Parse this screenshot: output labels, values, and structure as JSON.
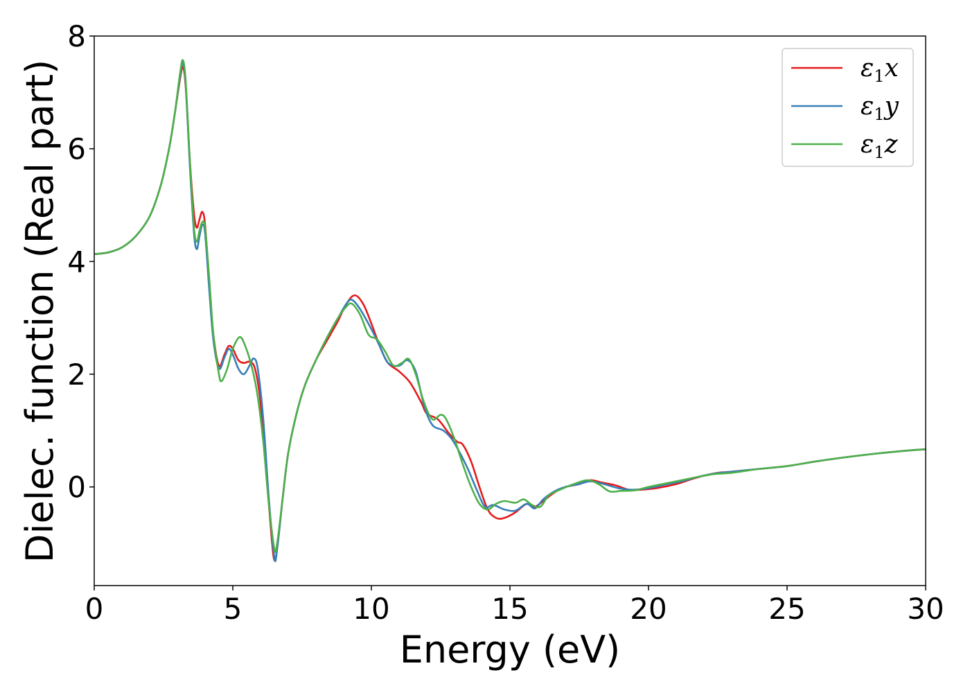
{
  "chart_data": {
    "type": "line",
    "title": "",
    "xlabel": "Energy (eV)",
    "ylabel": "Dielec. function (Real part)",
    "xlim": [
      0,
      30
    ],
    "ylim": [
      -1.75,
      8
    ],
    "xticks": [
      0,
      5,
      10,
      15,
      20,
      25,
      30
    ],
    "yticks": [
      0,
      2,
      4,
      6,
      8
    ],
    "grid": false,
    "legend_position": "top-right",
    "series": [
      {
        "name": "ε1x",
        "legend_main": "ε",
        "legend_sub": "1",
        "legend_tail": "x",
        "color": "#e41a1c",
        "points": [
          [
            0,
            4.13
          ],
          [
            0.5,
            4.16
          ],
          [
            1.0,
            4.25
          ],
          [
            1.5,
            4.45
          ],
          [
            2.0,
            4.8
          ],
          [
            2.4,
            5.35
          ],
          [
            2.7,
            6.0
          ],
          [
            2.9,
            6.6
          ],
          [
            3.1,
            7.25
          ],
          [
            3.2,
            7.45
          ],
          [
            3.3,
            7.1
          ],
          [
            3.45,
            5.8
          ],
          [
            3.6,
            4.85
          ],
          [
            3.7,
            4.6
          ],
          [
            3.8,
            4.75
          ],
          [
            3.9,
            4.88
          ],
          [
            4.0,
            4.65
          ],
          [
            4.15,
            3.6
          ],
          [
            4.3,
            2.7
          ],
          [
            4.5,
            2.15
          ],
          [
            4.7,
            2.35
          ],
          [
            4.85,
            2.5
          ],
          [
            5.0,
            2.45
          ],
          [
            5.2,
            2.25
          ],
          [
            5.4,
            2.2
          ],
          [
            5.6,
            2.22
          ],
          [
            5.8,
            2.1
          ],
          [
            6.0,
            1.5
          ],
          [
            6.2,
            0.3
          ],
          [
            6.4,
            -0.9
          ],
          [
            6.5,
            -1.3
          ],
          [
            6.6,
            -1.1
          ],
          [
            6.8,
            -0.2
          ],
          [
            7.0,
            0.6
          ],
          [
            7.3,
            1.3
          ],
          [
            7.6,
            1.8
          ],
          [
            8.0,
            2.25
          ],
          [
            8.4,
            2.6
          ],
          [
            8.8,
            2.95
          ],
          [
            9.1,
            3.25
          ],
          [
            9.4,
            3.4
          ],
          [
            9.7,
            3.25
          ],
          [
            10.0,
            2.9
          ],
          [
            10.3,
            2.5
          ],
          [
            10.6,
            2.2
          ],
          [
            11.0,
            2.05
          ],
          [
            11.4,
            1.85
          ],
          [
            11.8,
            1.5
          ],
          [
            12.0,
            1.3
          ],
          [
            12.4,
            1.2
          ],
          [
            12.8,
            0.95
          ],
          [
            13.1,
            0.8
          ],
          [
            13.3,
            0.75
          ],
          [
            13.6,
            0.45
          ],
          [
            13.9,
            0.0
          ],
          [
            14.2,
            -0.4
          ],
          [
            14.5,
            -0.55
          ],
          [
            14.8,
            -0.55
          ],
          [
            15.2,
            -0.45
          ],
          [
            15.6,
            -0.3
          ],
          [
            15.9,
            -0.35
          ],
          [
            16.2,
            -0.25
          ],
          [
            16.6,
            -0.1
          ],
          [
            17.0,
            0.0
          ],
          [
            17.5,
            0.05
          ],
          [
            17.9,
            0.12
          ],
          [
            18.3,
            0.08
          ],
          [
            18.8,
            0.03
          ],
          [
            19.3,
            -0.05
          ],
          [
            19.7,
            -0.05
          ],
          [
            20.3,
            -0.02
          ],
          [
            21.0,
            0.05
          ],
          [
            21.5,
            0.13
          ],
          [
            22.0,
            0.2
          ],
          [
            22.5,
            0.25
          ],
          [
            23.0,
            0.27
          ],
          [
            24.0,
            0.32
          ],
          [
            25.0,
            0.37
          ],
          [
            26.0,
            0.45
          ],
          [
            27.0,
            0.52
          ],
          [
            28.0,
            0.58
          ],
          [
            29.0,
            0.63
          ],
          [
            30.0,
            0.67
          ]
        ]
      },
      {
        "name": "ε1y",
        "legend_main": "ε",
        "legend_sub": "1",
        "legend_tail": "y",
        "color": "#377eb8",
        "points": [
          [
            0,
            4.13
          ],
          [
            0.5,
            4.16
          ],
          [
            1.0,
            4.25
          ],
          [
            1.5,
            4.45
          ],
          [
            2.0,
            4.8
          ],
          [
            2.4,
            5.35
          ],
          [
            2.7,
            6.0
          ],
          [
            2.9,
            6.6
          ],
          [
            3.1,
            7.3
          ],
          [
            3.2,
            7.52
          ],
          [
            3.3,
            7.15
          ],
          [
            3.45,
            5.7
          ],
          [
            3.6,
            4.5
          ],
          [
            3.7,
            4.22
          ],
          [
            3.8,
            4.45
          ],
          [
            3.9,
            4.65
          ],
          [
            4.0,
            4.5
          ],
          [
            4.15,
            3.5
          ],
          [
            4.3,
            2.6
          ],
          [
            4.5,
            2.1
          ],
          [
            4.7,
            2.3
          ],
          [
            4.85,
            2.45
          ],
          [
            5.0,
            2.35
          ],
          [
            5.2,
            2.1
          ],
          [
            5.4,
            2.0
          ],
          [
            5.6,
            2.15
          ],
          [
            5.75,
            2.28
          ],
          [
            5.9,
            2.1
          ],
          [
            6.1,
            1.2
          ],
          [
            6.3,
            -0.2
          ],
          [
            6.5,
            -1.25
          ],
          [
            6.6,
            -1.1
          ],
          [
            6.8,
            -0.2
          ],
          [
            7.0,
            0.6
          ],
          [
            7.3,
            1.3
          ],
          [
            7.6,
            1.8
          ],
          [
            8.0,
            2.25
          ],
          [
            8.4,
            2.65
          ],
          [
            8.8,
            3.0
          ],
          [
            9.1,
            3.25
          ],
          [
            9.3,
            3.32
          ],
          [
            9.6,
            3.15
          ],
          [
            10.0,
            2.8
          ],
          [
            10.3,
            2.5
          ],
          [
            10.6,
            2.2
          ],
          [
            11.0,
            2.15
          ],
          [
            11.3,
            2.25
          ],
          [
            11.6,
            2.05
          ],
          [
            11.9,
            1.45
          ],
          [
            12.2,
            1.1
          ],
          [
            12.6,
            1.0
          ],
          [
            12.9,
            0.85
          ],
          [
            13.2,
            0.6
          ],
          [
            13.5,
            0.3
          ],
          [
            13.8,
            -0.05
          ],
          [
            14.1,
            -0.35
          ],
          [
            14.4,
            -0.32
          ],
          [
            14.8,
            -0.4
          ],
          [
            15.2,
            -0.42
          ],
          [
            15.6,
            -0.3
          ],
          [
            15.9,
            -0.38
          ],
          [
            16.2,
            -0.22
          ],
          [
            16.6,
            -0.08
          ],
          [
            17.0,
            0.0
          ],
          [
            17.5,
            0.05
          ],
          [
            17.9,
            0.1
          ],
          [
            18.4,
            0.05
          ],
          [
            18.9,
            -0.02
          ],
          [
            19.4,
            -0.05
          ],
          [
            20.0,
            -0.02
          ],
          [
            20.6,
            0.04
          ],
          [
            21.2,
            0.1
          ],
          [
            21.8,
            0.18
          ],
          [
            22.4,
            0.24
          ],
          [
            23.0,
            0.27
          ],
          [
            24.0,
            0.32
          ],
          [
            25.0,
            0.37
          ],
          [
            26.0,
            0.45
          ],
          [
            27.0,
            0.52
          ],
          [
            28.0,
            0.58
          ],
          [
            29.0,
            0.63
          ],
          [
            30.0,
            0.67
          ]
        ]
      },
      {
        "name": "ε1z",
        "legend_main": "ε",
        "legend_sub": "1",
        "legend_tail": "z",
        "color": "#4daf4a",
        "points": [
          [
            0,
            4.13
          ],
          [
            0.5,
            4.16
          ],
          [
            1.0,
            4.25
          ],
          [
            1.5,
            4.45
          ],
          [
            2.0,
            4.8
          ],
          [
            2.4,
            5.35
          ],
          [
            2.7,
            6.0
          ],
          [
            2.9,
            6.6
          ],
          [
            3.1,
            7.35
          ],
          [
            3.2,
            7.57
          ],
          [
            3.3,
            7.2
          ],
          [
            3.45,
            5.8
          ],
          [
            3.6,
            4.6
          ],
          [
            3.7,
            4.35
          ],
          [
            3.8,
            4.55
          ],
          [
            3.9,
            4.7
          ],
          [
            4.0,
            4.6
          ],
          [
            4.15,
            3.7
          ],
          [
            4.3,
            2.7
          ],
          [
            4.5,
            2.0
          ],
          [
            4.6,
            1.88
          ],
          [
            4.8,
            2.1
          ],
          [
            5.0,
            2.45
          ],
          [
            5.25,
            2.66
          ],
          [
            5.45,
            2.5
          ],
          [
            5.7,
            2.1
          ],
          [
            5.9,
            1.6
          ],
          [
            6.1,
            0.8
          ],
          [
            6.3,
            -0.3
          ],
          [
            6.5,
            -1.1
          ],
          [
            6.6,
            -1.0
          ],
          [
            6.8,
            -0.2
          ],
          [
            7.0,
            0.6
          ],
          [
            7.3,
            1.3
          ],
          [
            7.6,
            1.8
          ],
          [
            8.0,
            2.25
          ],
          [
            8.4,
            2.65
          ],
          [
            8.8,
            3.0
          ],
          [
            9.1,
            3.2
          ],
          [
            9.3,
            3.25
          ],
          [
            9.6,
            3.05
          ],
          [
            9.9,
            2.7
          ],
          [
            10.2,
            2.62
          ],
          [
            10.5,
            2.4
          ],
          [
            10.8,
            2.15
          ],
          [
            11.1,
            2.2
          ],
          [
            11.35,
            2.27
          ],
          [
            11.6,
            2.0
          ],
          [
            11.9,
            1.5
          ],
          [
            12.2,
            1.2
          ],
          [
            12.5,
            1.28
          ],
          [
            12.7,
            1.2
          ],
          [
            13.0,
            0.85
          ],
          [
            13.3,
            0.4
          ],
          [
            13.6,
            0.0
          ],
          [
            13.9,
            -0.3
          ],
          [
            14.2,
            -0.4
          ],
          [
            14.5,
            -0.3
          ],
          [
            14.8,
            -0.25
          ],
          [
            15.2,
            -0.28
          ],
          [
            15.5,
            -0.22
          ],
          [
            15.8,
            -0.32
          ],
          [
            16.1,
            -0.35
          ],
          [
            16.4,
            -0.15
          ],
          [
            16.8,
            -0.05
          ],
          [
            17.3,
            0.05
          ],
          [
            17.8,
            0.12
          ],
          [
            18.2,
            0.05
          ],
          [
            18.6,
            -0.08
          ],
          [
            19.0,
            -0.07
          ],
          [
            19.5,
            -0.06
          ],
          [
            20.0,
            0.0
          ],
          [
            20.6,
            0.06
          ],
          [
            21.2,
            0.12
          ],
          [
            21.8,
            0.18
          ],
          [
            22.4,
            0.23
          ],
          [
            23.0,
            0.25
          ],
          [
            24.0,
            0.32
          ],
          [
            25.0,
            0.37
          ],
          [
            26.0,
            0.45
          ],
          [
            27.0,
            0.52
          ],
          [
            28.0,
            0.58
          ],
          [
            29.0,
            0.63
          ],
          [
            30.0,
            0.67
          ]
        ]
      }
    ]
  }
}
